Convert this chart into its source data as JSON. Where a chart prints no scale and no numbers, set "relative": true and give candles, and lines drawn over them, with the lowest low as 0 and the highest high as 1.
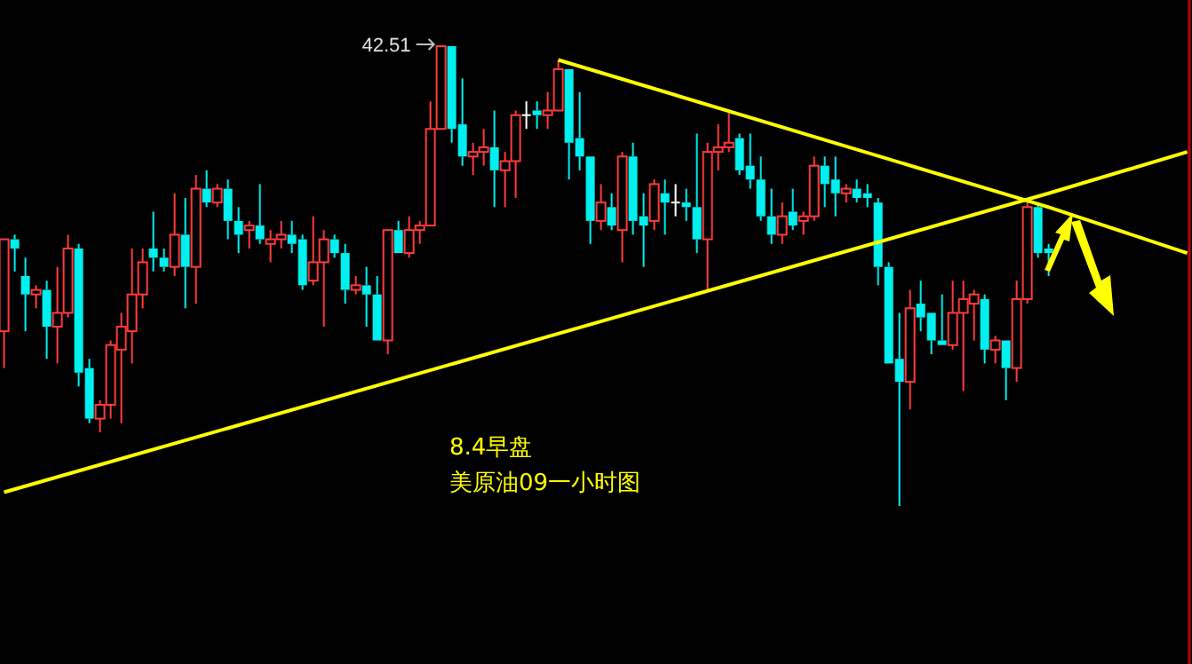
{
  "chart_data": {
    "type": "candlestick",
    "relative": true,
    "categories": [
      null,
      null,
      null,
      null,
      null,
      null,
      null,
      null,
      null,
      null,
      null,
      null,
      null,
      null,
      null,
      null,
      null,
      null,
      null,
      null,
      null,
      null,
      null,
      null,
      null,
      null,
      null,
      null,
      null,
      null,
      null,
      null,
      null,
      null,
      null,
      null,
      null,
      null,
      null,
      null,
      null,
      null,
      null,
      null,
      null,
      null,
      null,
      null,
      null,
      null,
      null,
      null,
      null,
      null,
      null,
      null,
      null,
      null,
      null,
      null,
      null,
      null,
      null,
      null,
      null,
      null,
      null,
      null,
      null,
      null,
      null,
      null,
      null,
      null,
      null,
      null,
      null,
      null,
      null,
      null,
      null,
      null,
      null,
      null,
      null,
      null,
      null,
      null,
      null,
      null,
      null,
      null,
      null,
      null,
      null,
      null,
      null,
      null,
      null,
      null,
      null,
      null,
      null,
      null,
      null,
      null,
      null,
      null,
      null,
      null,
      null,
      null
    ],
    "ohlc": [
      [
        0.38,
        0.58,
        0.3,
        0.58
      ],
      [
        0.58,
        0.59,
        0.51,
        0.56
      ],
      [
        0.5,
        0.54,
        0.38,
        0.46
      ],
      [
        0.46,
        0.48,
        0.43,
        0.47
      ],
      [
        0.47,
        0.49,
        0.32,
        0.39
      ],
      [
        0.39,
        0.52,
        0.31,
        0.42
      ],
      [
        0.42,
        0.59,
        0.41,
        0.56
      ],
      [
        0.56,
        0.57,
        0.26,
        0.29
      ],
      [
        0.3,
        0.32,
        0.18,
        0.19
      ],
      [
        0.19,
        0.23,
        0.16,
        0.22
      ],
      [
        0.22,
        0.36,
        0.19,
        0.35
      ],
      [
        0.34,
        0.42,
        0.18,
        0.39
      ],
      [
        0.38,
        0.56,
        0.31,
        0.46
      ],
      [
        0.46,
        0.56,
        0.43,
        0.53
      ],
      [
        0.56,
        0.64,
        0.51,
        0.54
      ],
      [
        0.54,
        0.56,
        0.51,
        0.52
      ],
      [
        0.52,
        0.68,
        0.5,
        0.59
      ],
      [
        0.59,
        0.67,
        0.43,
        0.52
      ],
      [
        0.52,
        0.72,
        0.44,
        0.69
      ],
      [
        0.69,
        0.73,
        0.65,
        0.66
      ],
      [
        0.66,
        0.7,
        0.65,
        0.69
      ],
      [
        0.69,
        0.71,
        0.58,
        0.62
      ],
      [
        0.62,
        0.65,
        0.55,
        0.59
      ],
      [
        0.6,
        0.62,
        0.56,
        0.61
      ],
      [
        0.61,
        0.7,
        0.57,
        0.58
      ],
      [
        0.57,
        0.6,
        0.53,
        0.58
      ],
      [
        0.58,
        0.62,
        0.56,
        0.59
      ],
      [
        0.59,
        0.62,
        0.55,
        0.57
      ],
      [
        0.58,
        0.59,
        0.47,
        0.48
      ],
      [
        0.49,
        0.63,
        0.48,
        0.53
      ],
      [
        0.53,
        0.6,
        0.39,
        0.58
      ],
      [
        0.58,
        0.59,
        0.54,
        0.55
      ],
      [
        0.55,
        0.57,
        0.44,
        0.47
      ],
      [
        0.47,
        0.5,
        0.46,
        0.48
      ],
      [
        0.48,
        0.52,
        0.39,
        0.46
      ],
      [
        0.46,
        0.5,
        0.36,
        0.36
      ],
      [
        0.36,
        0.6,
        0.33,
        0.6
      ],
      [
        0.6,
        0.62,
        0.55,
        0.55
      ],
      [
        0.55,
        0.63,
        0.54,
        0.6
      ],
      [
        0.6,
        0.62,
        0.57,
        0.61
      ],
      [
        0.61,
        0.88,
        0.61,
        0.82
      ],
      [
        0.82,
        1.0,
        0.82,
        1.0
      ],
      [
        1.0,
        1.0,
        0.79,
        0.82
      ],
      [
        0.83,
        0.93,
        0.74,
        0.76
      ],
      [
        0.76,
        0.79,
        0.72,
        0.77
      ],
      [
        0.77,
        0.82,
        0.74,
        0.78
      ],
      [
        0.78,
        0.86,
        0.65,
        0.73
      ],
      [
        0.73,
        0.77,
        0.65,
        0.75
      ],
      [
        0.75,
        0.86,
        0.67,
        0.85
      ],
      [
        0.85,
        0.88,
        0.82,
        0.85
      ],
      [
        0.86,
        0.88,
        0.82,
        0.85
      ],
      [
        0.85,
        0.9,
        0.82,
        0.86
      ],
      [
        0.86,
        0.97,
        0.86,
        0.95
      ],
      [
        0.95,
        0.95,
        0.71,
        0.79
      ],
      [
        0.8,
        0.9,
        0.73,
        0.76
      ],
      [
        0.76,
        0.76,
        0.57,
        0.62
      ],
      [
        0.62,
        0.7,
        0.6,
        0.66
      ],
      [
        0.65,
        0.68,
        0.6,
        0.61
      ],
      [
        0.6,
        0.77,
        0.53,
        0.76
      ],
      [
        0.76,
        0.79,
        0.59,
        0.62
      ],
      [
        0.63,
        0.68,
        0.52,
        0.61
      ],
      [
        0.62,
        0.71,
        0.6,
        0.7
      ],
      [
        0.68,
        0.71,
        0.59,
        0.66
      ],
      [
        0.66,
        0.7,
        0.63,
        0.66
      ],
      [
        0.66,
        0.69,
        0.62,
        0.65
      ],
      [
        0.65,
        0.81,
        0.55,
        0.58
      ],
      [
        0.58,
        0.79,
        0.47,
        0.77
      ],
      [
        0.77,
        0.83,
        0.73,
        0.78
      ],
      [
        0.78,
        0.86,
        0.77,
        0.79
      ],
      [
        0.8,
        0.81,
        0.72,
        0.73
      ],
      [
        0.74,
        0.81,
        0.69,
        0.71
      ],
      [
        0.71,
        0.76,
        0.62,
        0.63
      ],
      [
        0.63,
        0.69,
        0.57,
        0.59
      ],
      [
        0.59,
        0.66,
        0.57,
        0.63
      ],
      [
        0.64,
        0.69,
        0.6,
        0.61
      ],
      [
        0.62,
        0.64,
        0.59,
        0.63
      ],
      [
        0.63,
        0.76,
        0.62,
        0.74
      ],
      [
        0.74,
        0.76,
        0.65,
        0.7
      ],
      [
        0.71,
        0.76,
        0.63,
        0.68
      ],
      [
        0.68,
        0.7,
        0.66,
        0.69
      ],
      [
        0.69,
        0.71,
        0.66,
        0.67
      ],
      [
        0.68,
        0.7,
        0.65,
        0.67
      ],
      [
        0.66,
        0.67,
        0.48,
        0.52
      ],
      [
        0.52,
        0.53,
        0.31,
        0.31
      ],
      [
        0.32,
        0.42,
        0.0,
        0.27
      ],
      [
        0.27,
        0.47,
        0.21,
        0.43
      ],
      [
        0.44,
        0.49,
        0.38,
        0.41
      ],
      [
        0.42,
        0.42,
        0.33,
        0.36
      ],
      [
        0.36,
        0.46,
        0.35,
        0.35
      ],
      [
        0.35,
        0.49,
        0.34,
        0.42
      ],
      [
        0.42,
        0.49,
        0.25,
        0.45
      ],
      [
        0.44,
        0.47,
        0.36,
        0.46
      ],
      [
        0.45,
        0.46,
        0.31,
        0.34
      ],
      [
        0.34,
        0.37,
        0.31,
        0.36
      ],
      [
        0.36,
        0.36,
        0.23,
        0.3
      ],
      [
        0.3,
        0.49,
        0.27,
        0.45
      ],
      [
        0.45,
        0.66,
        0.44,
        0.65
      ],
      [
        0.65,
        0.66,
        0.54,
        0.55
      ],
      [
        0.56,
        0.57,
        0.5,
        0.55
      ],
      null,
      null,
      null,
      null,
      null,
      null,
      null,
      null,
      null,
      null,
      null,
      null,
      null
    ],
    "series": [
      {
        "type": "line",
        "color": "#ffff00",
        "values": [
          null,
          null,
          null,
          null,
          null,
          null,
          null,
          null,
          null,
          null,
          null,
          null,
          null,
          null,
          null,
          null,
          null,
          null,
          null,
          null,
          null,
          null,
          null,
          null,
          null,
          null,
          null,
          null,
          null,
          null,
          null,
          null,
          null,
          null,
          null,
          null,
          null,
          null,
          null,
          null,
          null,
          null,
          null,
          null,
          null,
          null,
          null,
          null,
          null,
          null,
          null,
          null,
          0.97,
          null,
          null,
          null,
          null,
          null,
          null,
          null,
          null,
          null,
          null,
          null,
          null,
          null,
          null,
          null,
          null,
          null,
          null,
          null,
          null,
          null,
          null,
          null,
          null,
          null,
          null,
          null,
          null,
          null,
          null,
          null,
          null,
          null,
          null,
          null,
          null,
          null,
          null,
          null,
          null,
          null,
          null,
          null,
          null,
          null,
          0.65,
          null,
          null,
          null,
          null,
          null,
          null,
          null,
          null,
          null,
          null,
          null,
          null,
          0.55
        ]
      },
      {
        "type": "line",
        "color": "#ffff00",
        "values": [
          0.03,
          null,
          null,
          null,
          null,
          null,
          null,
          null,
          null,
          null,
          null,
          null,
          null,
          null,
          null,
          null,
          null,
          null,
          null,
          null,
          null,
          null,
          null,
          null,
          null,
          null,
          null,
          null,
          null,
          null,
          null,
          null,
          null,
          null,
          null,
          null,
          null,
          null,
          null,
          null,
          null,
          null,
          null,
          null,
          null,
          null,
          null,
          null,
          null,
          null,
          null,
          null,
          null,
          null,
          null,
          null,
          null,
          null,
          null,
          null,
          null,
          null,
          null,
          null,
          null,
          null,
          null,
          null,
          null,
          null,
          null,
          null,
          null,
          null,
          null,
          null,
          null,
          null,
          null,
          null,
          null,
          null,
          null,
          null,
          null,
          null,
          null,
          null,
          null,
          null,
          null,
          null,
          null,
          null,
          null,
          null,
          null,
          null,
          0.68,
          null,
          null,
          null,
          null,
          null,
          null,
          null,
          null,
          null,
          null,
          null,
          null,
          0.77
        ]
      }
    ],
    "annotations": [
      "42.51",
      "8.4早盘",
      "美原油09一小时图"
    ]
  }
}
